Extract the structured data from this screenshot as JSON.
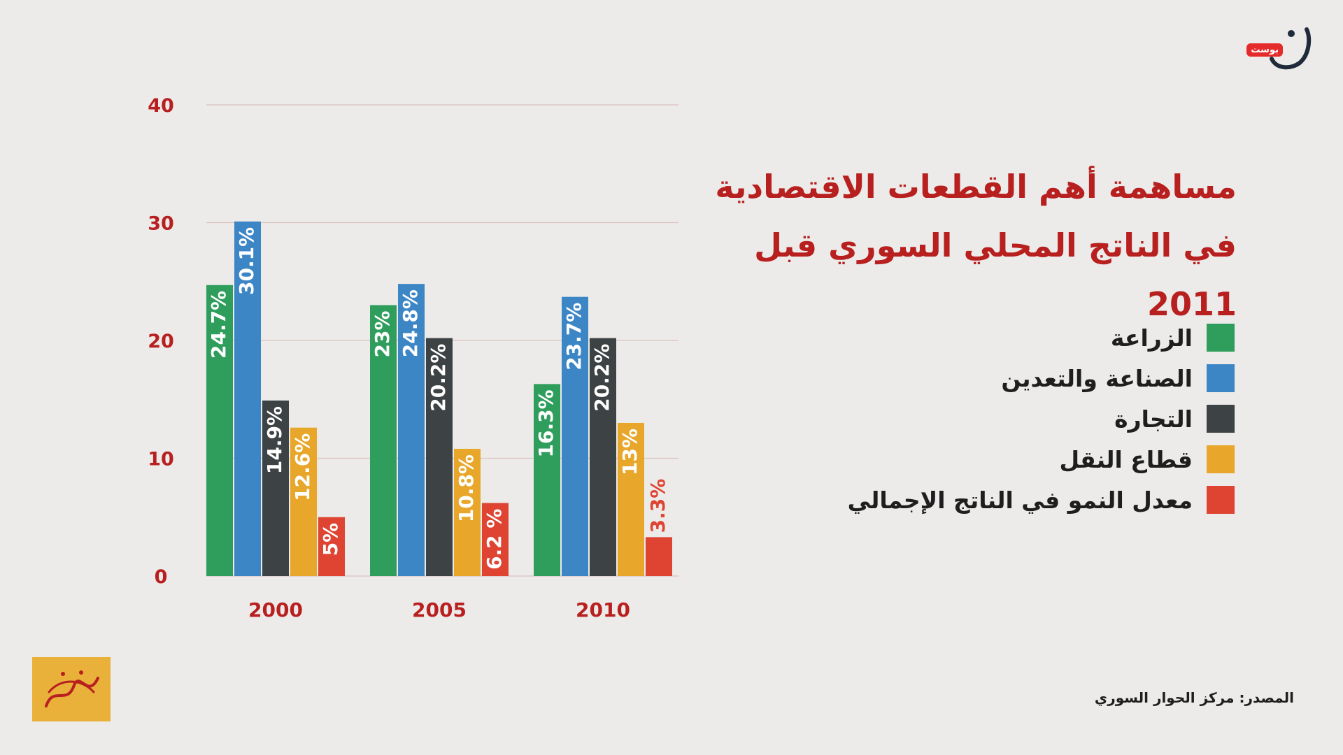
{
  "header": {
    "title_line1": "مساهمة أهم القطعات الاقتصادية",
    "title_line2": "في الناتج المحلي السوري قبل 2011"
  },
  "brand": {
    "label": "بوست",
    "logo_icon": "noon-letter-logo",
    "stamp_icon": "aish-kasra-calligraphy-stamp",
    "stamp_text": "عيش كسرة"
  },
  "source": "المصدر: مركز الحوار السوري",
  "colors": {
    "accent": "#b81f1f",
    "agriculture": "#2f9e5c",
    "industry": "#3d86c6",
    "trade": "#3d4244",
    "transport": "#e8a72a",
    "growth": "#df4432",
    "grid": "#dcc0c0"
  },
  "chart_data": {
    "type": "bar",
    "categories": [
      "2000",
      "2005",
      "2010"
    ],
    "ylim": [
      0,
      40
    ],
    "yticks": [
      "0",
      "10",
      "20",
      "30",
      "40"
    ],
    "grid": true,
    "legend_position": "right",
    "series": [
      {
        "name": "الزراعة",
        "color": "#2f9e5c",
        "values": [
          24.7,
          23,
          16.3
        ],
        "labels": [
          "24.7%",
          "23%",
          "16.3%"
        ]
      },
      {
        "name": "الصناعة والتعدين",
        "color": "#3d86c6",
        "values": [
          30.1,
          24.8,
          23.7
        ],
        "labels": [
          "30.1%",
          "24.8%",
          "23.7%"
        ]
      },
      {
        "name": "التجارة",
        "color": "#3d4244",
        "values": [
          14.9,
          20.2,
          20.2
        ],
        "labels": [
          "14.9%",
          "20.2%",
          "20.2%"
        ]
      },
      {
        "name": "قطاع النقل",
        "color": "#e8a72a",
        "values": [
          12.6,
          10.8,
          13
        ],
        "labels": [
          "12.6%",
          "10.8%",
          "13%"
        ]
      },
      {
        "name": "معدل النمو في الناتج الإجمالي",
        "color": "#df4432",
        "values": [
          5,
          6.2,
          3.3
        ],
        "labels": [
          "5%",
          "6.2 %",
          "3.3%"
        ]
      }
    ]
  }
}
